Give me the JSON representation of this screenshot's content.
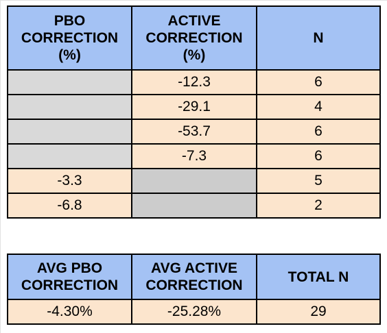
{
  "table1": {
    "headers": [
      "PBO\nCORRECTION\n(%)",
      "ACTIVE\nCORRECTION\n(%)",
      "N"
    ],
    "rows": [
      {
        "pbo": "",
        "active": "-12.3",
        "n": "6"
      },
      {
        "pbo": "",
        "active": "-29.1",
        "n": "4"
      },
      {
        "pbo": "",
        "active": "-53.7",
        "n": "6"
      },
      {
        "pbo": "",
        "active": "-7.3",
        "n": "6"
      },
      {
        "pbo": "-3.3",
        "active": "",
        "n": "5"
      },
      {
        "pbo": "-6.8",
        "active": "",
        "n": "2"
      }
    ]
  },
  "table2": {
    "headers": [
      "AVG PBO CORRECTION",
      "AVG ACTIVE CORRECTION",
      "TOTAL N"
    ],
    "values": [
      "-4.30%",
      "-25.28%",
      "29"
    ]
  },
  "colors": {
    "header_bg": "#a4c2f4",
    "value_bg": "#fce5cd",
    "empty_bg": "#d9d9d9"
  }
}
